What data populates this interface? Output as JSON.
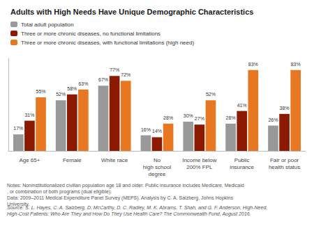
{
  "chart_data": {
    "type": "bar",
    "title": "Adults with High Needs Have Unique Demographic Characteristics",
    "categories": [
      "Age 65+",
      "Female",
      "White race",
      "No\nhigh school\ndegree",
      "Income below\n200% FPL",
      "Public\ninsurance",
      "Fair or poor\nhealth status"
    ],
    "series": [
      {
        "name": "Total adult population",
        "color": "#999999",
        "values": [
          17,
          52,
          67,
          16,
          30,
          28,
          26
        ],
        "value_labels": [
          "17%",
          "52%",
          "67%",
          "16%",
          "30%",
          "28%",
          "26%"
        ]
      },
      {
        "name": "Three or more chronic diseases, no functional limitations",
        "color": "#8B1A00",
        "values": [
          31,
          58,
          77,
          14,
          27,
          41,
          38
        ],
        "value_labels": [
          "31%",
          "58%",
          "77%",
          "14%",
          "27%",
          "41%",
          "38%"
        ]
      },
      {
        "name": "Three or more chronic diseases, with functional limitations (high need)",
        "color": "#E87722",
        "values": [
          55,
          63,
          72,
          28,
          52,
          83,
          83
        ],
        "value_labels": [
          "55%",
          "63%",
          "72%",
          "28%",
          "52%",
          "83%",
          "83%"
        ]
      }
    ],
    "ylim": [
      0,
      95
    ],
    "grid": false,
    "legend": "upper left",
    "data_labels": true,
    "tick_labels": "x",
    "annotations": [
      "Notes: Noninstitutionalized civilian population age 18 and older. Public insurance includes Medicare, Medicaid, or combination of both programs (dual eligible).\nData: 2009–2011 Medical Expenditure Panel Survey (MEPS). Analysis by C. A. Salzberg, Johns Hopkins University.",
      "Source: S. L. Hayes, C. A. Salzberg, D. McCarthy, D. C. Radley, M. K. Abrams, T. Shah, and G. F. Anderson, High-Need,\nHigh-Cost Patients: Who Are They and How Do They Use Health Care? The Commonwealth Fund, August 2016."
    ]
  }
}
